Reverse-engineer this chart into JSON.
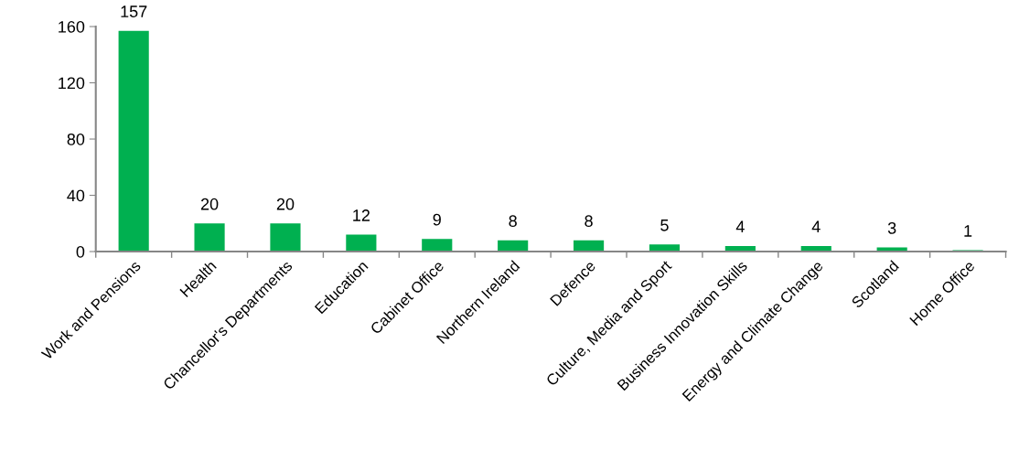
{
  "chart_data": {
    "type": "bar",
    "categories": [
      "Work and Pensions",
      "Health",
      "Chancellor's Departments",
      "Education",
      "Cabinet Office",
      "Northern Ireland",
      "Defence",
      "Culture, Media and Sport",
      "Business Innovation Skills",
      "Energy and Climate Change",
      "Scotland",
      "Home Office"
    ],
    "values": [
      157,
      20,
      20,
      12,
      9,
      8,
      8,
      5,
      4,
      4,
      3,
      1
    ],
    "color": "#00b050",
    "ylim": [
      0,
      160
    ],
    "yticks": [
      0,
      40,
      80,
      120,
      160
    ],
    "data_labels": true,
    "grid": false,
    "legend": false
  }
}
